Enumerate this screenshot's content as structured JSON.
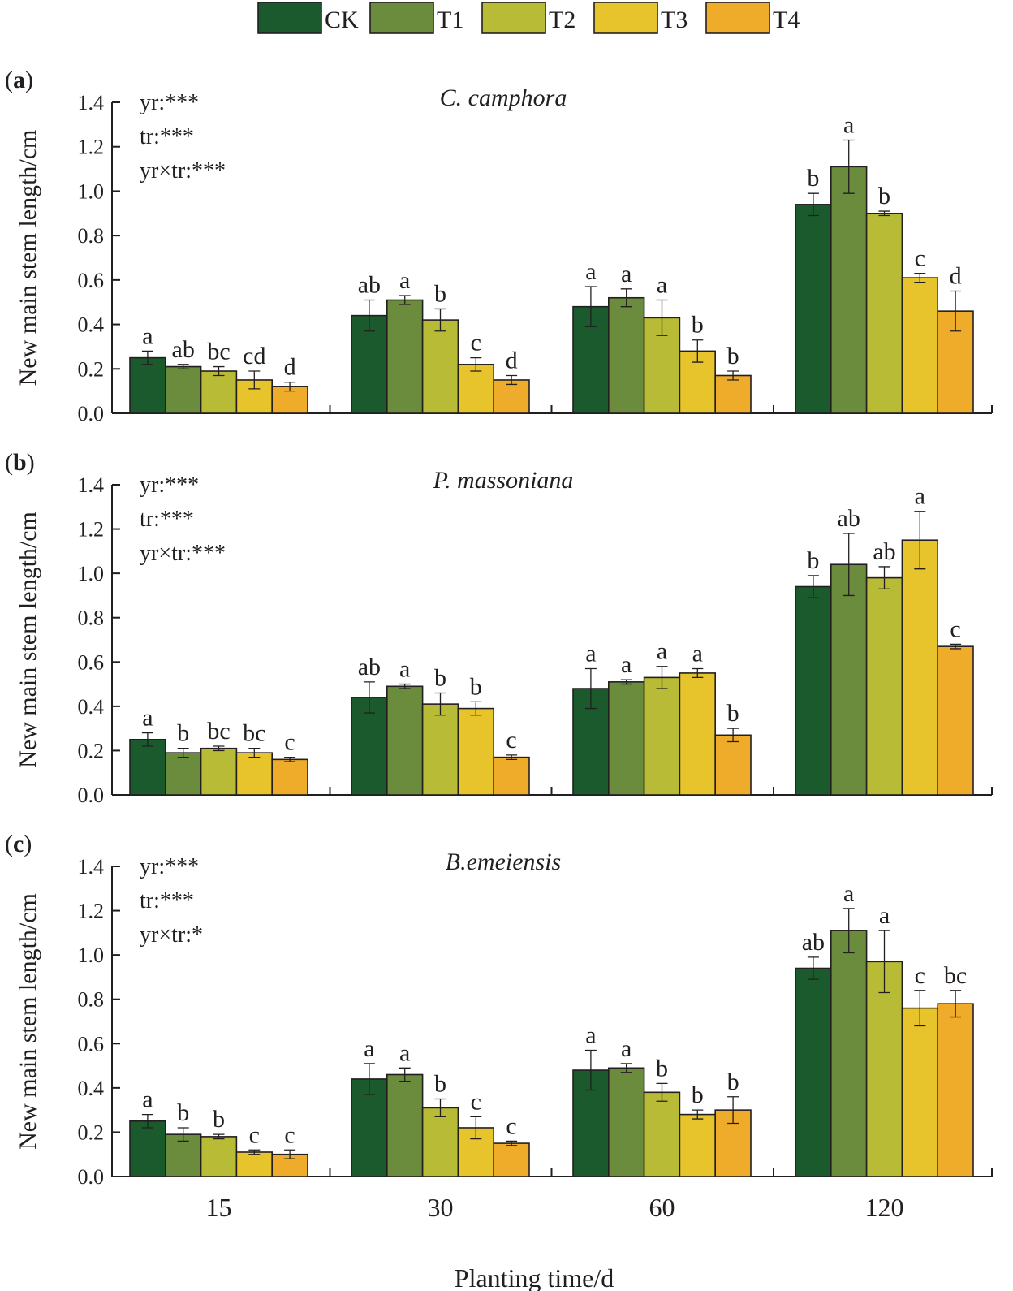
{
  "colors": {
    "CK": "#1a5a2c",
    "T1": "#6a8c3c",
    "T2": "#b8bb36",
    "T3": "#e8c42c",
    "T4": "#efab2a",
    "axis": "#231f20"
  },
  "chart_data": [
    {
      "type": "bar",
      "panel": "(a)",
      "panel_letter": "a",
      "title": "C. camphora",
      "xlabel": "Planting time/d",
      "ylabel": "New main stem length/cm",
      "ylim": [
        0,
        1.4
      ],
      "yticks": [
        "0.0",
        "0.2",
        "0.4",
        "0.6",
        "0.8",
        "1.0",
        "1.2",
        "1.4"
      ],
      "categories": [
        "15",
        "30",
        "60",
        "120"
      ],
      "stats": [
        "yr:***",
        "tr:***",
        "yr×tr:***"
      ],
      "series": [
        {
          "name": "CK",
          "values": [
            0.25,
            0.44,
            0.48,
            0.94
          ],
          "errors": [
            0.03,
            0.07,
            0.09,
            0.05
          ],
          "labels": [
            "a",
            "ab",
            "a",
            "b"
          ]
        },
        {
          "name": "T1",
          "values": [
            0.21,
            0.51,
            0.52,
            1.11
          ],
          "errors": [
            0.01,
            0.02,
            0.04,
            0.12
          ],
          "labels": [
            "ab",
            "a",
            "a",
            "a"
          ]
        },
        {
          "name": "T2",
          "values": [
            0.19,
            0.42,
            0.43,
            0.9
          ],
          "errors": [
            0.02,
            0.05,
            0.08,
            0.01
          ],
          "labels": [
            "bc",
            "b",
            "a",
            "b"
          ]
        },
        {
          "name": "T3",
          "values": [
            0.15,
            0.22,
            0.28,
            0.61
          ],
          "errors": [
            0.04,
            0.03,
            0.05,
            0.02
          ],
          "labels": [
            "cd",
            "c",
            "b",
            "c"
          ]
        },
        {
          "name": "T4",
          "values": [
            0.12,
            0.15,
            0.17,
            0.46
          ],
          "errors": [
            0.02,
            0.02,
            0.02,
            0.09
          ],
          "labels": [
            "d",
            "d",
            "b",
            "d"
          ]
        }
      ]
    },
    {
      "type": "bar",
      "panel": "(b)",
      "panel_letter": "b",
      "title": "P. massoniana",
      "xlabel": "Planting time/d",
      "ylabel": "New main stem length/cm",
      "ylim": [
        0,
        1.4
      ],
      "yticks": [
        "0.0",
        "0.2",
        "0.4",
        "0.6",
        "0.8",
        "1.0",
        "1.2",
        "1.4"
      ],
      "categories": [
        "15",
        "30",
        "60",
        "120"
      ],
      "stats": [
        "yr:***",
        "tr:***",
        "yr×tr:***"
      ],
      "series": [
        {
          "name": "CK",
          "values": [
            0.25,
            0.44,
            0.48,
            0.94
          ],
          "errors": [
            0.03,
            0.07,
            0.09,
            0.05
          ],
          "labels": [
            "a",
            "ab",
            "a",
            "b"
          ]
        },
        {
          "name": "T1",
          "values": [
            0.19,
            0.49,
            0.51,
            1.04
          ],
          "errors": [
            0.02,
            0.01,
            0.01,
            0.14
          ],
          "labels": [
            "b",
            "a",
            "a",
            "ab"
          ]
        },
        {
          "name": "T2",
          "values": [
            0.21,
            0.41,
            0.53,
            0.98
          ],
          "errors": [
            0.01,
            0.05,
            0.05,
            0.05
          ],
          "labels": [
            "bc",
            "b",
            "a",
            "ab"
          ]
        },
        {
          "name": "T3",
          "values": [
            0.19,
            0.39,
            0.55,
            1.15
          ],
          "errors": [
            0.02,
            0.03,
            0.02,
            0.13
          ],
          "labels": [
            "bc",
            "b",
            "a",
            "a"
          ]
        },
        {
          "name": "T4",
          "values": [
            0.16,
            0.17,
            0.27,
            0.67
          ],
          "errors": [
            0.01,
            0.01,
            0.03,
            0.01
          ],
          "labels": [
            "c",
            "c",
            "b",
            "c"
          ]
        }
      ]
    },
    {
      "type": "bar",
      "panel": "(c)",
      "panel_letter": "c",
      "title": "B.emeiensis",
      "xlabel": "Planting time/d",
      "ylabel": "New main stem length/cm",
      "ylim": [
        0,
        1.4
      ],
      "yticks": [
        "0.0",
        "0.2",
        "0.4",
        "0.6",
        "0.8",
        "1.0",
        "1.2",
        "1.4"
      ],
      "categories": [
        "15",
        "30",
        "60",
        "120"
      ],
      "stats": [
        "yr:***",
        "tr:***",
        "yr×tr:*"
      ],
      "series": [
        {
          "name": "CK",
          "values": [
            0.25,
            0.44,
            0.48,
            0.94
          ],
          "errors": [
            0.03,
            0.07,
            0.09,
            0.05
          ],
          "labels": [
            "a",
            "a",
            "a",
            "ab"
          ]
        },
        {
          "name": "T1",
          "values": [
            0.19,
            0.46,
            0.49,
            1.11
          ],
          "errors": [
            0.03,
            0.03,
            0.02,
            0.1
          ],
          "labels": [
            "b",
            "a",
            "a",
            "a"
          ]
        },
        {
          "name": "T2",
          "values": [
            0.18,
            0.31,
            0.38,
            0.97
          ],
          "errors": [
            0.01,
            0.04,
            0.04,
            0.14
          ],
          "labels": [
            "b",
            "b",
            "b",
            "a"
          ]
        },
        {
          "name": "T3",
          "values": [
            0.11,
            0.22,
            0.28,
            0.76
          ],
          "errors": [
            0.01,
            0.05,
            0.02,
            0.08
          ],
          "labels": [
            "c",
            "c",
            "b",
            "c"
          ]
        },
        {
          "name": "T4",
          "values": [
            0.1,
            0.15,
            0.3,
            0.78
          ],
          "errors": [
            0.02,
            0.01,
            0.06,
            0.06
          ],
          "labels": [
            "c",
            "c",
            "b",
            "bc"
          ]
        }
      ]
    }
  ],
  "legend": [
    "CK",
    "T1",
    "T2",
    "T3",
    "T4"
  ],
  "x_axis_title": "Planting time/d"
}
